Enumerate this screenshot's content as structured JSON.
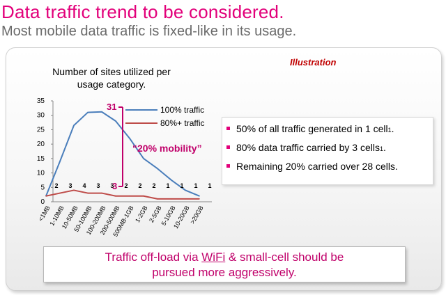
{
  "header": {
    "title": "Data traffic trend to be considered.",
    "subtitle": "Most mobile data traffic is fixed-like in its usage."
  },
  "illustration_label": "Illustration",
  "colors": {
    "accent": "#e2007a",
    "series_100": "#4a7ebb",
    "series_80": "#be4b48",
    "annotation": "#c0006a"
  },
  "chart_data": {
    "type": "line",
    "title": "Number of sites utilized per usage category.",
    "xlabel": "",
    "ylabel": "",
    "ylim": [
      0,
      35
    ],
    "yticks": [
      0,
      5,
      10,
      15,
      20,
      25,
      30,
      35
    ],
    "categories": [
      "<1MB",
      "1-10MB",
      "10-50MB",
      "50-100MB",
      "100-200MB",
      "200-500MB",
      "500MB-1GB",
      "1-2GB",
      "2-5GB",
      "5-10GB",
      "10-20GB",
      ">20GB"
    ],
    "series": [
      {
        "name": "100% traffic",
        "values": [
          2,
          14,
          26.5,
          31,
          31.2,
          28,
          22,
          15,
          11.5,
          7.5,
          4,
          2
        ]
      },
      {
        "name": "80%+ traffic",
        "values": [
          2,
          3,
          4,
          3,
          3,
          2,
          2,
          2,
          1,
          1,
          1,
          1
        ]
      }
    ],
    "data_labels": [
      "2",
      "3",
      "4",
      "3",
      "3",
      "2",
      "2",
      "2",
      "1",
      "1",
      "1",
      "1"
    ],
    "grid": false,
    "legend": "top-right",
    "annotations": {
      "top": "31",
      "bottom": "3",
      "mobility": "“20% mobility”"
    }
  },
  "bullets": [
    {
      "text": "50% of all traffic generated in 1 cell",
      "sup": "1",
      "tail": "."
    },
    {
      "text": "80% data traffic carried by 3 cells",
      "sup": "1",
      "tail": "."
    },
    {
      "text": "Remaining 20% carried over 28 cells.",
      "sup": "",
      "tail": ""
    }
  ],
  "callout": {
    "part1": "Traffic off-load via ",
    "wifi": "WiFi",
    "part2": " & small-cell should be",
    "line2": "pursued more aggressively."
  }
}
